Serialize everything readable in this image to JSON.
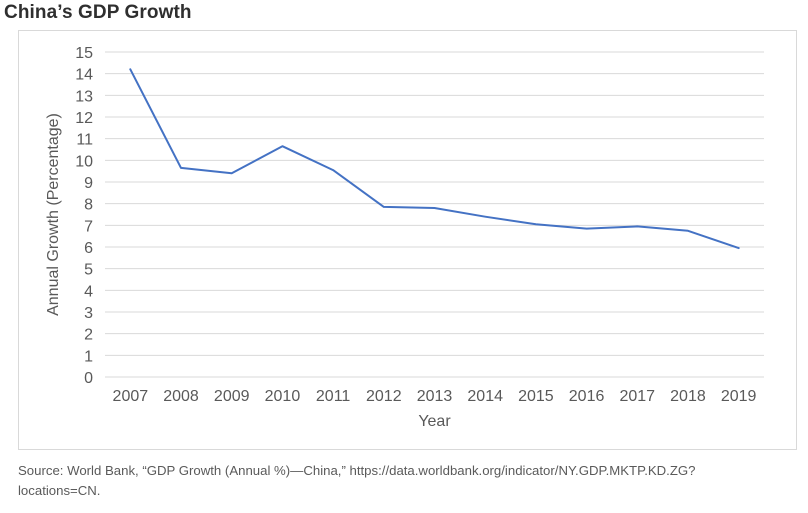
{
  "title": "China’s GDP Growth",
  "chart_data": {
    "type": "line",
    "title": "China’s GDP Growth",
    "xlabel": "Year",
    "ylabel": "Annual Growth (Percentage)",
    "ylim": [
      0,
      15
    ],
    "yticks": [
      0,
      1,
      2,
      3,
      4,
      5,
      6,
      7,
      8,
      9,
      10,
      11,
      12,
      13,
      14,
      15
    ],
    "grid": true,
    "categories": [
      "2007",
      "2008",
      "2009",
      "2010",
      "2011",
      "2012",
      "2013",
      "2014",
      "2015",
      "2016",
      "2017",
      "2018",
      "2019"
    ],
    "series": [
      {
        "values": [
          14.2,
          9.65,
          9.4,
          10.65,
          9.55,
          7.85,
          7.8,
          7.4,
          7.05,
          6.85,
          6.95,
          6.75,
          5.95
        ]
      }
    ],
    "line_color": "#4472c4",
    "grid_color": "#d9d9d9"
  },
  "source": {
    "line1": "Source: World Bank, “GDP Growth (Annual %)—China,” https://data.worldbank.org/indicator/NY.GDP.MKTP.KD.ZG?",
    "line2": "locations=CN."
  }
}
